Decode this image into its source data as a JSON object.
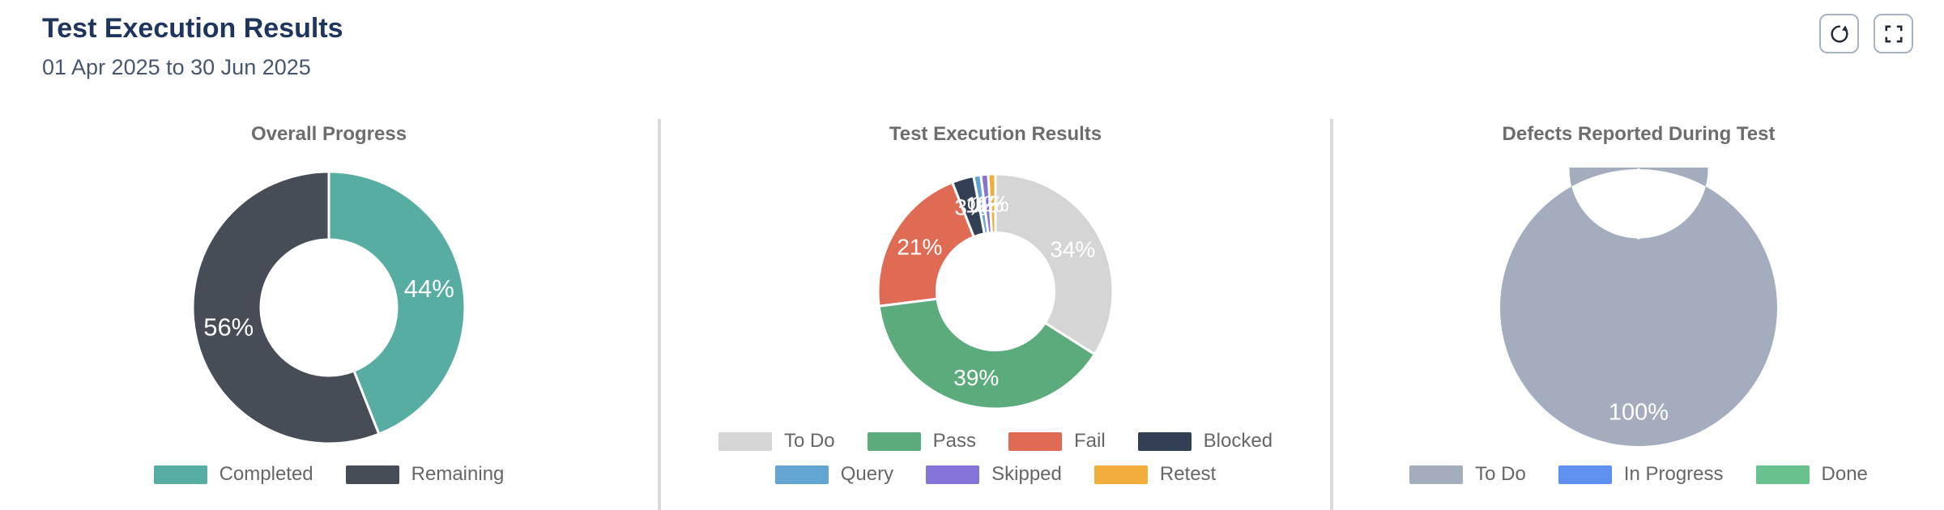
{
  "header": {
    "title": "Test Execution Results",
    "date_range": "01 Apr 2025 to 30 Jun 2025"
  },
  "toolbar": {
    "buttons": [
      {
        "icon": "refresh"
      },
      {
        "icon": "fullscreen"
      }
    ]
  },
  "colors": {
    "header_title": "#20355e",
    "header_subtitle": "#47566e",
    "chart_title": "#6d6d6d",
    "legend_text": "#666666",
    "divider": "#d9dade",
    "button_border": "#a7b3c2",
    "slice_border": "#ffffff"
  },
  "chart_data": [
    {
      "type": "pie",
      "donut": true,
      "title": "Overall Progress",
      "unit": "%",
      "legend_position": "bottom",
      "slices": [
        {
          "label": "Completed",
          "value": 44,
          "color": "#58ada2"
        },
        {
          "label": "Remaining",
          "value": 56,
          "color": "#464d56"
        }
      ],
      "legend_rows": [
        [
          "Completed",
          "Remaining"
        ]
      ]
    },
    {
      "type": "pie",
      "donut": true,
      "title": "Test Execution Results",
      "unit": "%",
      "legend_position": "bottom",
      "slices": [
        {
          "label": "To Do",
          "value": 34,
          "color": "#d5d5d5"
        },
        {
          "label": "Pass",
          "value": 39,
          "color": "#5cab7c"
        },
        {
          "label": "Fail",
          "value": 21,
          "color": "#e06b54"
        },
        {
          "label": "Blocked",
          "value": 3,
          "color": "#333f54"
        },
        {
          "label": "Query",
          "value": 1,
          "color": "#62a4d2"
        },
        {
          "label": "Skipped",
          "value": 1,
          "color": "#8573d7"
        },
        {
          "label": "Retest",
          "value": 1,
          "color": "#f2ac3c"
        }
      ],
      "legend_rows": [
        [
          "To Do",
          "Pass",
          "Fail",
          "Blocked"
        ],
        [
          "Query",
          "Skipped",
          "Retest"
        ]
      ]
    },
    {
      "type": "pie",
      "donut": true,
      "title": "Defects Reported During Test",
      "unit": "%",
      "legend_position": "bottom",
      "slices": [
        {
          "label": "To Do",
          "value": 100,
          "color": "#a3adbe"
        },
        {
          "label": "In Progress",
          "value": 0,
          "color": "#5e90f2"
        },
        {
          "label": "Done",
          "value": 0,
          "color": "#67c28e"
        }
      ],
      "legend_rows": [
        [
          "To Do",
          "In Progress",
          "Done"
        ]
      ]
    }
  ]
}
